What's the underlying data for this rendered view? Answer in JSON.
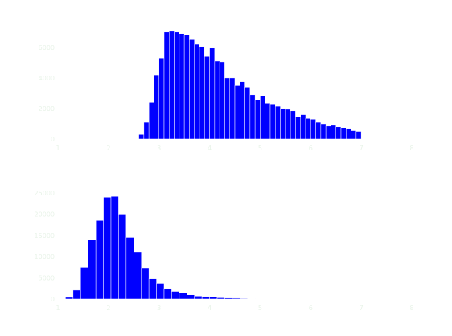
{
  "colors": {
    "bar": "#0000ff",
    "tick_text": "#e8f3e8",
    "background": "#ffffff"
  },
  "chart_data": [
    {
      "type": "bar",
      "title": "",
      "xlabel": "",
      "ylabel": "",
      "grid": false,
      "xlim": [
        1,
        8
      ],
      "ylim": [
        0,
        7200
      ],
      "xticks": [
        1,
        2,
        3,
        4,
        5,
        6,
        7,
        8
      ],
      "xtick_labels": [
        "1",
        "2",
        "3",
        "4",
        "5",
        "6",
        "7",
        "8"
      ],
      "yticks": [
        0,
        2000,
        4000,
        6000
      ],
      "ytick_labels": [
        "0",
        "2000",
        "4000",
        "6000"
      ],
      "bin_start": 1.0,
      "bin_width": 0.1,
      "values": [
        0,
        0,
        0,
        0,
        0,
        0,
        0,
        0,
        0,
        0,
        0,
        0,
        0,
        0,
        0,
        0,
        300,
        1100,
        2400,
        4200,
        5300,
        7000,
        7050,
        7000,
        6900,
        6800,
        6500,
        6200,
        6050,
        5400,
        5950,
        5100,
        5050,
        4000,
        4000,
        3500,
        3750,
        3400,
        2900,
        2550,
        2800,
        2350,
        2250,
        2150,
        2000,
        1950,
        1850,
        1450,
        1600,
        1350,
        1300,
        1100,
        1000,
        850,
        900,
        800,
        750,
        700,
        550,
        500
      ]
    },
    {
      "type": "bar",
      "title": "",
      "xlabel": "",
      "ylabel": "",
      "grid": false,
      "xlim": [
        1,
        8
      ],
      "ylim": [
        0,
        25000
      ],
      "xticks": [
        1,
        2,
        3,
        4,
        5,
        6,
        7,
        8
      ],
      "xtick_labels": [
        "1",
        "2",
        "3",
        "4",
        "5",
        "6",
        "7",
        "8"
      ],
      "yticks": [
        0,
        5000,
        10000,
        15000,
        20000,
        25000
      ],
      "ytick_labels": [
        "0",
        "5000",
        "10000",
        "15000",
        "20000",
        "25000"
      ],
      "bin_start": 1.0,
      "bin_width": 0.15,
      "values": [
        0,
        400,
        2100,
        7500,
        14000,
        18500,
        24000,
        24200,
        20000,
        14500,
        11000,
        7200,
        4800,
        3700,
        2500,
        1800,
        1500,
        1000,
        700,
        600,
        450,
        300,
        250,
        200,
        120,
        50,
        0,
        0,
        0,
        0,
        0,
        0,
        0,
        0,
        0,
        0,
        0,
        0,
        0,
        0,
        0,
        0,
        0,
        0,
        0,
        0,
        0
      ]
    }
  ]
}
